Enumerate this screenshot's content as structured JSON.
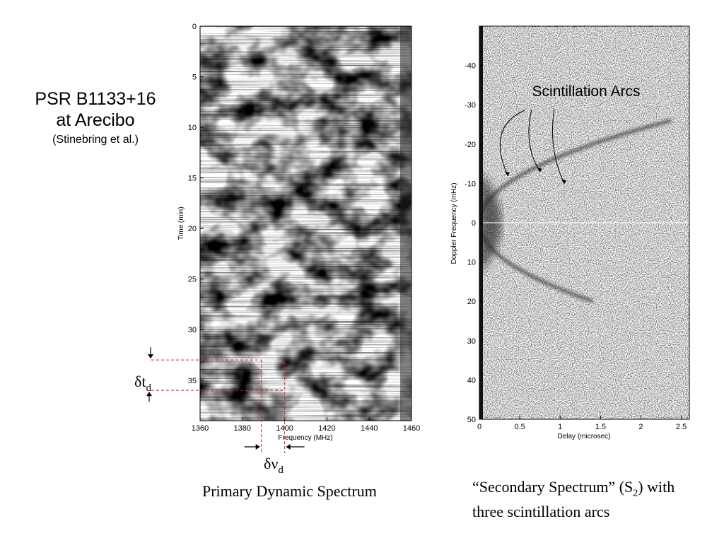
{
  "title": {
    "line1": "PSR B1133+16",
    "line2": "at Arecibo",
    "line3": "(Stinebring et al.)"
  },
  "primary": {
    "caption": "Primary Dynamic Spectrum",
    "xlabel": "Frequency (MHz)",
    "ylabel": "Time (min)",
    "delta_t_symbol": "δt",
    "delta_t_sub": "d",
    "delta_nu_symbol": "δν",
    "delta_nu_sub": "d"
  },
  "secondary": {
    "caption_part1": "“Secondary Spectrum” (S",
    "caption_sub": "2",
    "caption_part2": ") with",
    "caption_line2": "three scintillation arcs",
    "annotation": "Scintillation Arcs",
    "xlabel": "Delay (microsec)",
    "ylabel": "Doppler Frequency (mHz)"
  },
  "colors": {
    "annotation_lines": "#e02020",
    "ink": "#000000"
  },
  "chart_data": [
    {
      "type": "heatmap",
      "name": "primary-dynamic-spectrum",
      "xlabel": "Frequency (MHz)",
      "ylabel": "Time (min)",
      "xlim": [
        1360,
        1460
      ],
      "ylim": [
        0,
        39
      ],
      "y_inverted": true,
      "x_ticks": [
        1360,
        1380,
        1400,
        1420,
        1440,
        1460
      ],
      "y_ticks": [
        0,
        5,
        10,
        15,
        20,
        25,
        30,
        35
      ],
      "scintle_width_markers_mhz": [
        1389,
        1400
      ],
      "scintle_time_markers_min": [
        33,
        36
      ]
    },
    {
      "type": "heatmap",
      "name": "secondary-spectrum",
      "xlabel": "Delay (microsec)",
      "ylabel": "Doppler Frequency (mHz)",
      "xlim": [
        0,
        2.6
      ],
      "ylim": [
        -50,
        50
      ],
      "y_inverted": true,
      "x_ticks": [
        0,
        0.5,
        1,
        1.5,
        2,
        2.5
      ],
      "x_tick_labels": [
        "0",
        "0.5",
        "1",
        "1.5",
        "2",
        "2.5"
      ],
      "y_ticks": [
        -40,
        -30,
        -20,
        -10,
        0,
        10,
        20,
        30,
        40,
        50
      ],
      "arc_annotation_tips_delay_doppler": [
        [
          0.35,
          -12
        ],
        [
          0.75,
          -13
        ],
        [
          1.05,
          -10
        ]
      ]
    }
  ]
}
